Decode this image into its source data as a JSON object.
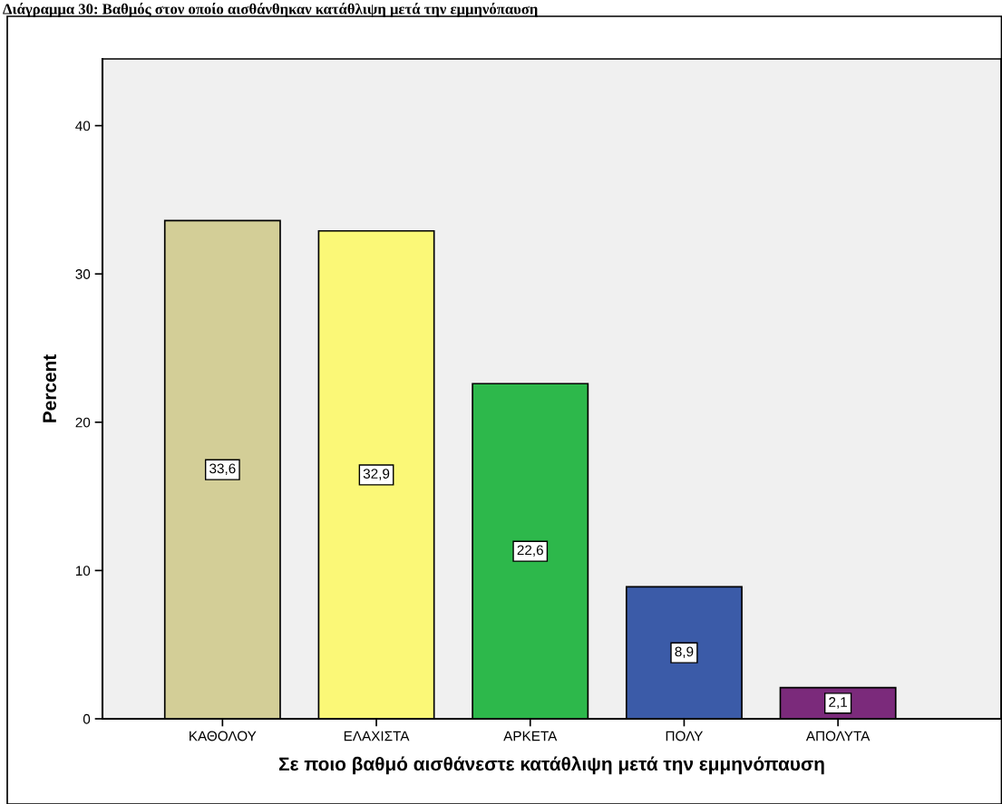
{
  "chart_data": {
    "type": "bar",
    "title": "Διάγραμμα 30: Βαθμός στον οποίο αισθάνθηκαν κατάθλιψη μετά την εμμηνόπαυση",
    "categories": [
      "ΚΑΘΟΛΟΥ",
      "ΕΛΑΧΙΣΤΑ",
      "ΑΡΚΕΤΑ",
      "ΠΟΛΥ",
      "ΑΠΟΛΥΤΑ"
    ],
    "values": [
      33.6,
      32.9,
      22.6,
      8.9,
      2.1
    ],
    "value_labels": [
      "33,6",
      "32,9",
      "22,6",
      "8,9",
      "2,1"
    ],
    "colors": [
      "#d3ce97",
      "#fbf877",
      "#2db84b",
      "#3b5ba8",
      "#7b2a7b"
    ],
    "xlabel": "Σε ποιο βαθμό αισθάνεστε κατάθλιψη μετά την εμμηνόπαυση",
    "ylabel": "Percent",
    "ylim": [
      0,
      44.5
    ],
    "yticks": [
      0,
      10,
      20,
      30,
      40
    ],
    "grid": false,
    "legend": false
  }
}
